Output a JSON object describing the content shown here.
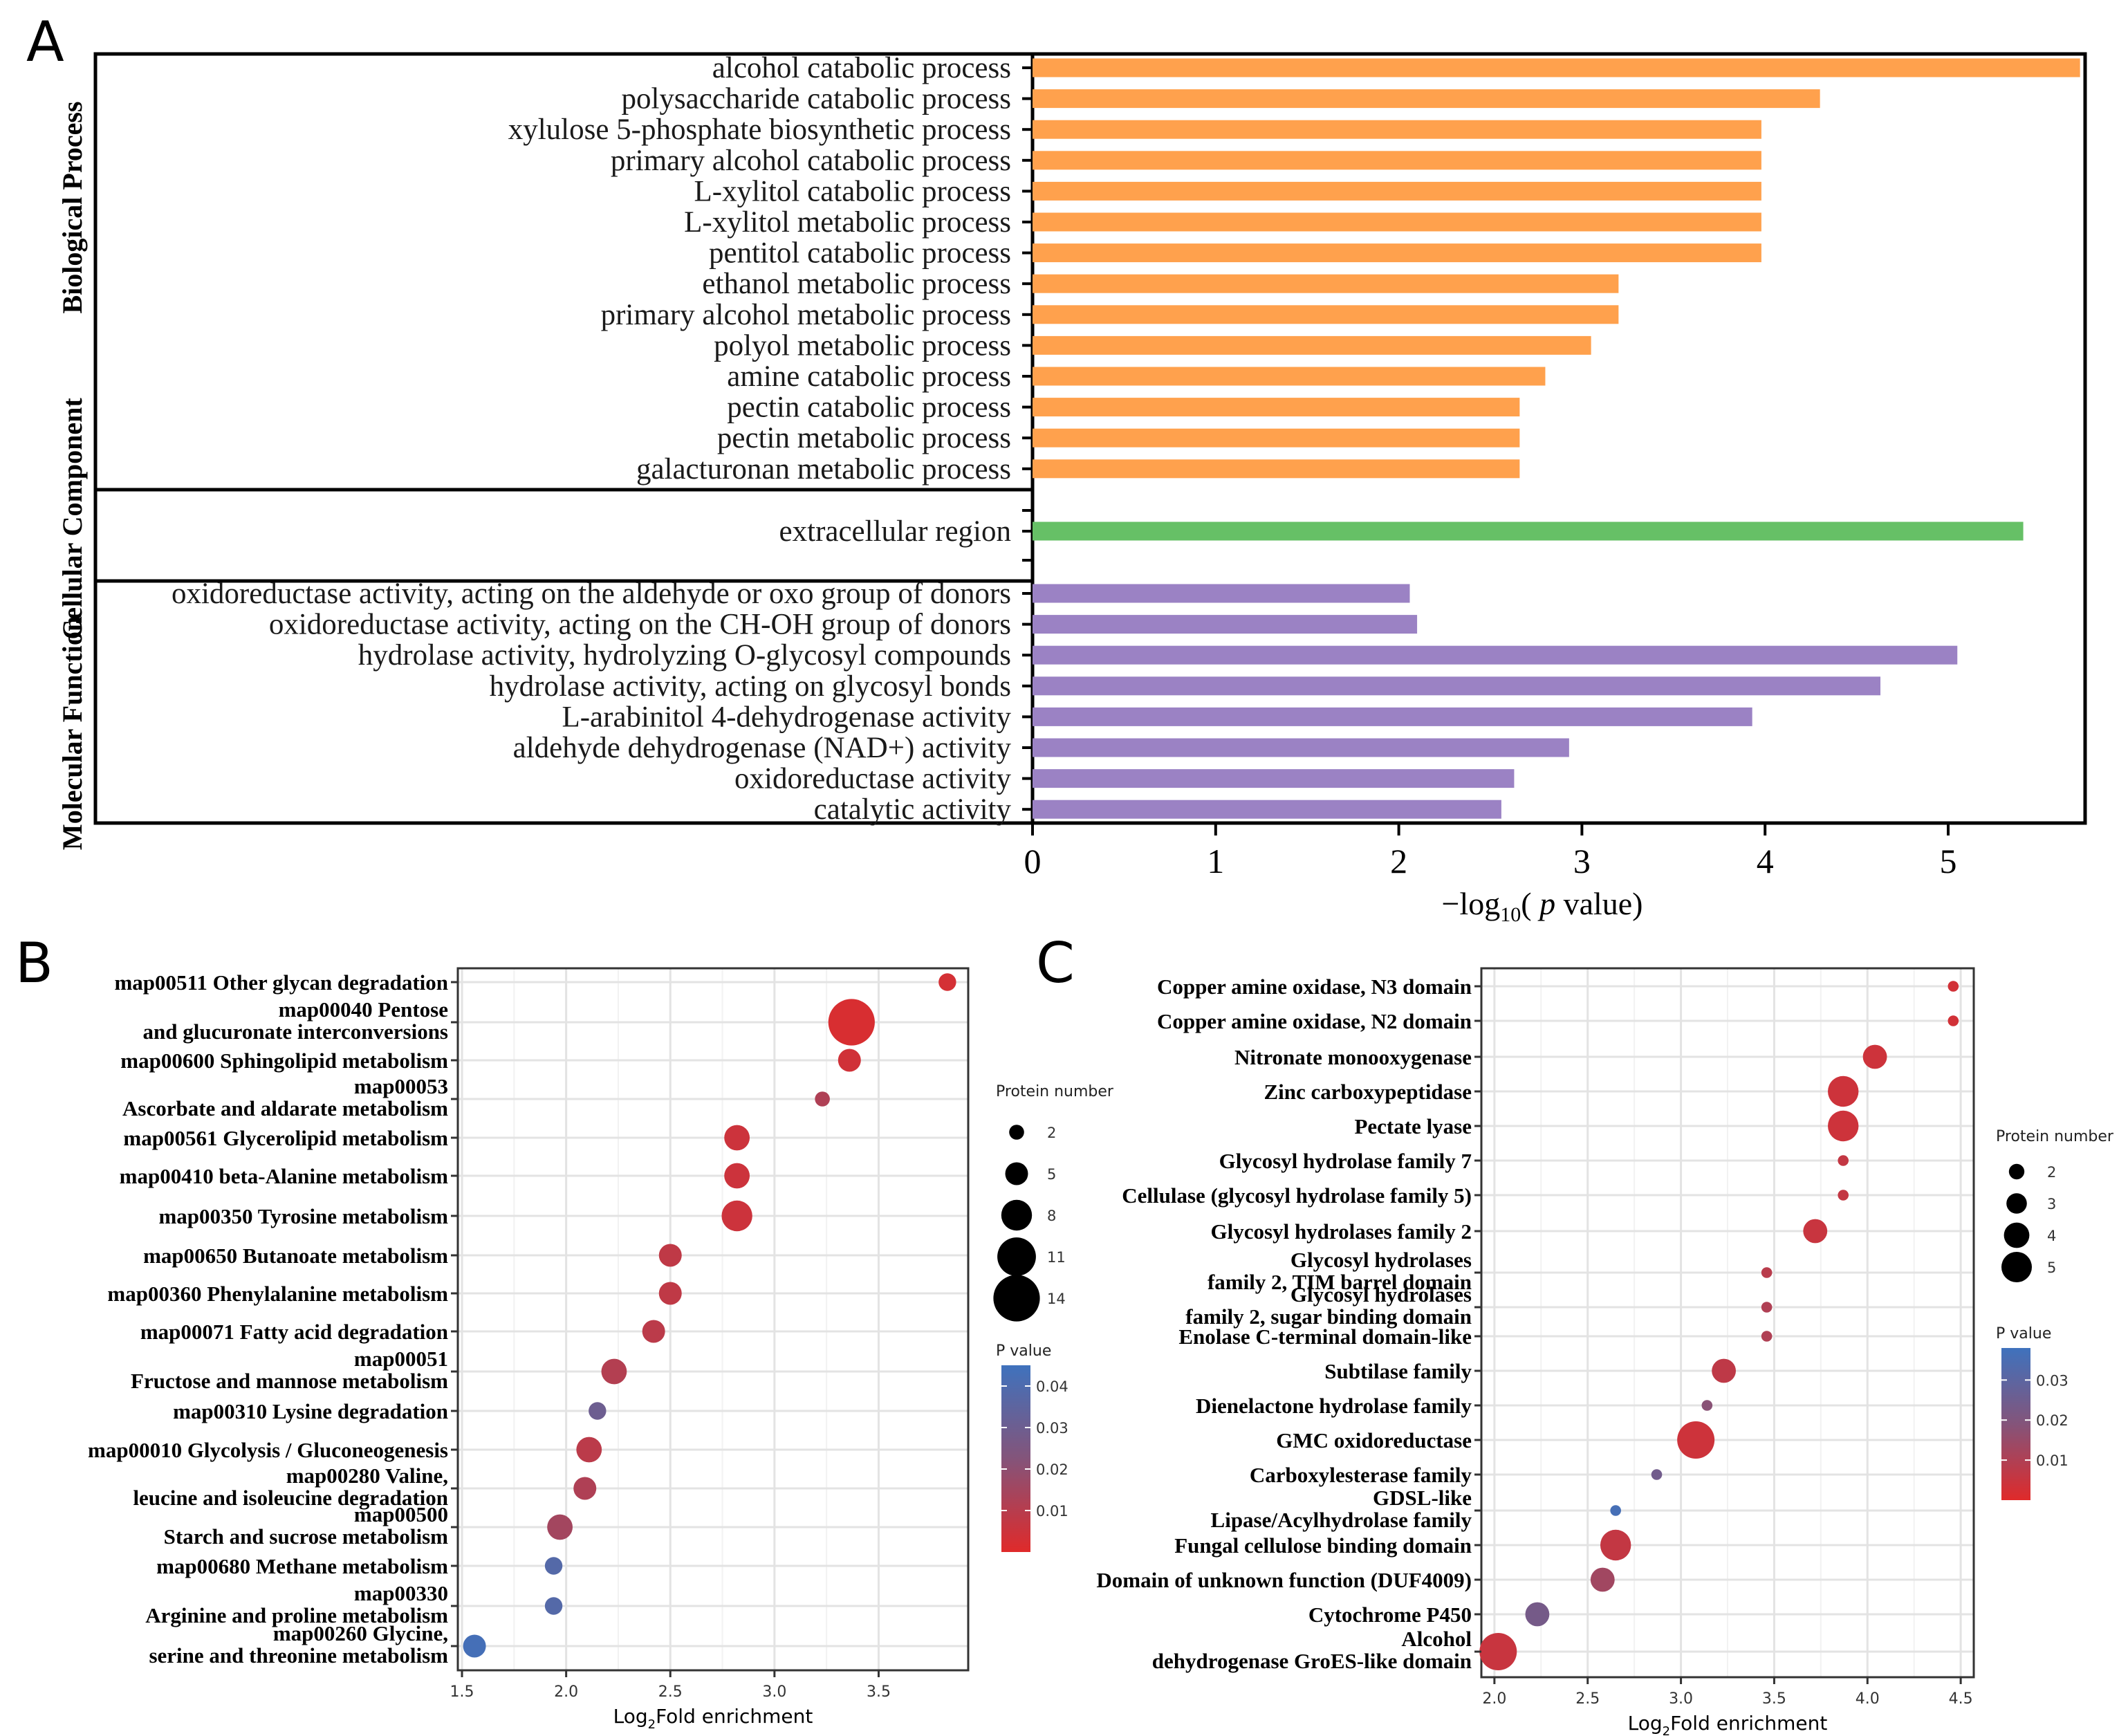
{
  "panels": {
    "a": "A",
    "b": "B",
    "c": "C"
  },
  "colors": {
    "bp": "#FFA14D",
    "cc": "#66C066",
    "mf": "#9B82C4",
    "grid": "#E5E5E5",
    "border": "#000000",
    "p_high": "#E02A2A",
    "p_low": "#3F72BD",
    "p_mid": "#84547A"
  },
  "chart_data": [
    {
      "type": "bar",
      "orientation": "horizontal",
      "panel": "A",
      "xlabel": "−log10( p value)",
      "xlabel_parts": {
        "prefix": "−log",
        "sub": "10",
        "mid": "( ",
        "italic": "p",
        "suffix": " value)"
      },
      "xlim": [
        0,
        5.75
      ],
      "xticks": [
        "0",
        "1",
        "2",
        "3",
        "4",
        "5"
      ],
      "groups": [
        {
          "name": "Biological Process",
          "color": "#FFA14D",
          "categories": [
            "alcohol catabolic process",
            "polysaccharide catabolic process",
            "xylulose 5-phosphate biosynthetic process",
            "primary alcohol catabolic process",
            "L-xylitol catabolic process",
            "L-xylitol metabolic process",
            "pentitol catabolic process",
            "ethanol metabolic process",
            "primary alcohol metabolic process",
            "polyol metabolic process",
            "amine catabolic process",
            "pectin catabolic process",
            "pectin metabolic process",
            "galacturonan metabolic process"
          ],
          "values": [
            5.72,
            4.3,
            3.98,
            3.98,
            3.98,
            3.98,
            3.98,
            3.2,
            3.2,
            3.05,
            2.8,
            2.66,
            2.66,
            2.66
          ]
        },
        {
          "name": "Cellular Component",
          "color": "#66C066",
          "categories": [
            "extracellular region"
          ],
          "values": [
            5.41
          ]
        },
        {
          "name": "Molecular Function",
          "color": "#9B82C4",
          "categories": [
            "oxidoreductase activity, acting on the aldehyde or oxo group of donors",
            "oxidoreductase activity, acting on the CH-OH group of donors",
            "hydrolase activity, hydrolyzing O-glycosyl compounds",
            "hydrolase activity, acting on glycosyl bonds",
            "L-arabinitol 4-dehydrogenase activity",
            "aldehyde dehydrogenase (NAD+) activity",
            "oxidoreductase activity",
            "catalytic activity"
          ],
          "values": [
            2.06,
            2.1,
            5.05,
            4.63,
            3.93,
            2.93,
            2.63,
            2.56
          ]
        }
      ]
    },
    {
      "type": "scatter",
      "subtype": "bubble",
      "panel": "B",
      "xlabel_parts": {
        "prefix": "Log",
        "sub": "2",
        "suffix": "Fold enrichment"
      },
      "xlim": [
        1.48,
        3.93
      ],
      "xticks": [
        1.5,
        2.0,
        2.5,
        3.0,
        3.5
      ],
      "xtick_labels": [
        "1.5",
        "2.0",
        "2.5",
        "3.0",
        "3.5"
      ],
      "size_legend": {
        "title": "Protein number",
        "values": [
          2,
          5,
          8,
          11,
          14
        ],
        "labels": [
          "2",
          "5",
          "8",
          "11",
          "14"
        ]
      },
      "color_legend": {
        "title": "P value",
        "range": [
          0.0,
          0.045
        ],
        "ticks": [
          0.01,
          0.02,
          0.03,
          0.04
        ],
        "tick_labels": [
          "0.01",
          "0.02",
          "0.03",
          "0.04"
        ]
      },
      "points": [
        {
          "lines": [
            "map00511 Other glycan degradation"
          ],
          "x": 3.83,
          "size": 3,
          "p": 0.003
        },
        {
          "lines": [
            "map00040 Pentose",
            "and glucuronate interconversions"
          ],
          "x": 3.37,
          "size": 14,
          "p": 0.002
        },
        {
          "lines": [
            "map00600 Sphingolipid metabolism"
          ],
          "x": 3.36,
          "size": 5,
          "p": 0.004
        },
        {
          "lines": [
            "map00053",
            "Ascorbate and aldarate metabolism"
          ],
          "x": 3.23,
          "size": 2,
          "p": 0.012
        },
        {
          "lines": [
            "map00561 Glycerolipid metabolism"
          ],
          "x": 2.82,
          "size": 6,
          "p": 0.005
        },
        {
          "lines": [
            "map00410 beta-Alanine metabolism"
          ],
          "x": 2.82,
          "size": 6,
          "p": 0.005
        },
        {
          "lines": [
            "map00350 Tyrosine metabolism"
          ],
          "x": 2.82,
          "size": 8,
          "p": 0.005
        },
        {
          "lines": [
            "map00650 Butanoate metabolism"
          ],
          "x": 2.5,
          "size": 5,
          "p": 0.008
        },
        {
          "lines": [
            "map00360 Phenylalanine metabolism"
          ],
          "x": 2.5,
          "size": 5,
          "p": 0.008
        },
        {
          "lines": [
            "map00071 Fatty acid degradation"
          ],
          "x": 2.42,
          "size": 5,
          "p": 0.009
        },
        {
          "lines": [
            "map00051",
            "Fructose and mannose metabolism"
          ],
          "x": 2.23,
          "size": 6,
          "p": 0.011
        },
        {
          "lines": [
            "map00310 Lysine degradation"
          ],
          "x": 2.15,
          "size": 3,
          "p": 0.03
        },
        {
          "lines": [
            "map00010 Glycolysis / Gluconeogenesis"
          ],
          "x": 2.11,
          "size": 6,
          "p": 0.009
        },
        {
          "lines": [
            "map00280 Valine,",
            "leucine and isoleucine degradation"
          ],
          "x": 2.09,
          "size": 5,
          "p": 0.012
        },
        {
          "lines": [
            "map00500",
            "Starch and sucrose metabolism"
          ],
          "x": 1.97,
          "size": 6,
          "p": 0.015
        },
        {
          "lines": [
            "map00680 Methane metabolism"
          ],
          "x": 1.94,
          "size": 3,
          "p": 0.038
        },
        {
          "lines": [
            "map00330",
            "Arginine and proline metabolism"
          ],
          "x": 1.94,
          "size": 3,
          "p": 0.038
        },
        {
          "lines": [
            "map00260 Glycine,",
            "serine and threonine metabolism"
          ],
          "x": 1.56,
          "size": 5,
          "p": 0.043
        }
      ]
    },
    {
      "type": "scatter",
      "subtype": "bubble",
      "panel": "C",
      "xlabel_parts": {
        "prefix": "Log",
        "sub": "2",
        "suffix": "Fold enrichment"
      },
      "xlim": [
        1.93,
        4.57
      ],
      "xticks": [
        2.0,
        2.5,
        3.0,
        3.5,
        4.0,
        4.5
      ],
      "xtick_labels": [
        "2.0",
        "2.5",
        "3.0",
        "3.5",
        "4.0",
        "4.5"
      ],
      "size_legend": {
        "title": "Protein number",
        "values": [
          2,
          3,
          4,
          5
        ],
        "labels": [
          "2",
          "3",
          "4",
          "5"
        ]
      },
      "color_legend": {
        "title": "P value",
        "range": [
          0.0,
          0.038
        ],
        "ticks": [
          0.01,
          0.02,
          0.03
        ],
        "tick_labels": [
          "0.01",
          "0.02",
          "0.03"
        ]
      },
      "points": [
        {
          "lines": [
            "Copper amine oxidase, N3 domain"
          ],
          "x": 4.46,
          "size": 1,
          "p": 0.003
        },
        {
          "lines": [
            "Copper amine oxidase, N2 domain"
          ],
          "x": 4.46,
          "size": 1,
          "p": 0.003
        },
        {
          "lines": [
            "Nitronate monooxygenase"
          ],
          "x": 4.04,
          "size": 3,
          "p": 0.004
        },
        {
          "lines": [
            "Zinc carboxypeptidase"
          ],
          "x": 3.87,
          "size": 4,
          "p": 0.004
        },
        {
          "lines": [
            "Pectate lyase"
          ],
          "x": 3.87,
          "size": 4,
          "p": 0.004
        },
        {
          "lines": [
            "Glycosyl hydrolase family 7"
          ],
          "x": 3.87,
          "size": 1,
          "p": 0.006
        },
        {
          "lines": [
            "Cellulase (glycosyl hydrolase family 5)"
          ],
          "x": 3.87,
          "size": 1,
          "p": 0.006
        },
        {
          "lines": [
            "Glycosyl hydrolases family 2"
          ],
          "x": 3.72,
          "size": 3,
          "p": 0.005
        },
        {
          "lines": [
            "Glycosyl hydrolases",
            "family 2, TIM barrel domain"
          ],
          "x": 3.46,
          "size": 1,
          "p": 0.008
        },
        {
          "lines": [
            "Glycosyl hydrolases",
            "family 2, sugar binding domain"
          ],
          "x": 3.46,
          "size": 1,
          "p": 0.01
        },
        {
          "lines": [
            "Enolase C-terminal domain-like"
          ],
          "x": 3.46,
          "size": 1,
          "p": 0.01
        },
        {
          "lines": [
            "Subtilase family"
          ],
          "x": 3.23,
          "size": 3,
          "p": 0.007
        },
        {
          "lines": [
            "Dienelactone hydrolase family"
          ],
          "x": 3.14,
          "size": 1,
          "p": 0.018
        },
        {
          "lines": [
            "GMC oxidoreductase"
          ],
          "x": 3.08,
          "size": 5,
          "p": 0.004
        },
        {
          "lines": [
            "Carboxylesterase family"
          ],
          "x": 2.87,
          "size": 1,
          "p": 0.024
        },
        {
          "lines": [
            "GDSL-like",
            "Lipase/Acylhydrolase family"
          ],
          "x": 2.65,
          "size": 1,
          "p": 0.036
        },
        {
          "lines": [
            "Fungal cellulose binding domain"
          ],
          "x": 2.65,
          "size": 4,
          "p": 0.006
        },
        {
          "lines": [
            "Domain of unknown function (DUF4009)"
          ],
          "x": 2.58,
          "size": 3,
          "p": 0.013
        },
        {
          "lines": [
            "Cytochrome P450"
          ],
          "x": 2.23,
          "size": 3,
          "p": 0.023
        },
        {
          "lines": [
            "Alcohol",
            "dehydrogenase GroES-like domain"
          ],
          "x": 2.02,
          "size": 5,
          "p": 0.005
        }
      ]
    }
  ]
}
